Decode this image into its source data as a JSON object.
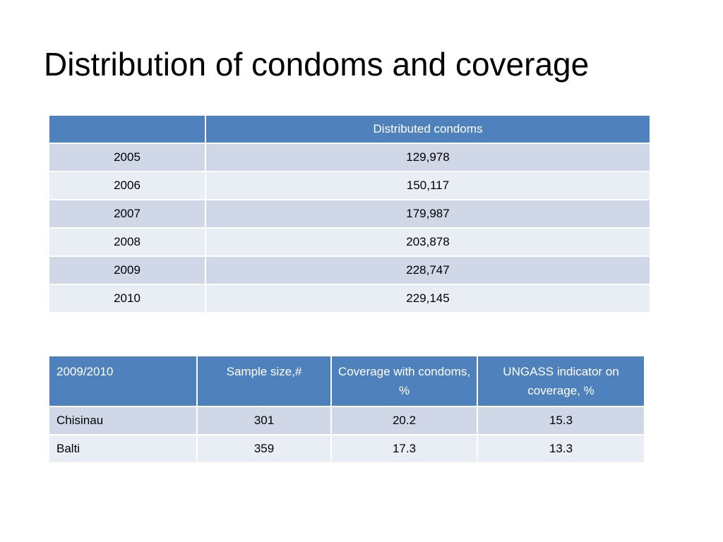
{
  "slide": {
    "title": "Distribution of condoms and coverage"
  },
  "table_distribution": {
    "header": [
      "",
      "Distributed condoms"
    ],
    "rows": [
      {
        "year": "2005",
        "value": "129,978"
      },
      {
        "year": "2006",
        "value": "150,117"
      },
      {
        "year": "2007",
        "value": "179,987"
      },
      {
        "year": "2008",
        "value": "203,878"
      },
      {
        "year": "2009",
        "value": "228,747"
      },
      {
        "year": "2010",
        "value": "229,145"
      }
    ]
  },
  "table_coverage": {
    "header": [
      "2009/2010",
      "Sample size,#",
      "Coverage with condoms, %",
      "UNGASS indicator on coverage, %"
    ],
    "rows": [
      {
        "city": "Chisinau",
        "sample": "301",
        "coverage": "20.2",
        "ungass": "15.3"
      },
      {
        "city": "Balti",
        "sample": "359",
        "coverage": "17.3",
        "ungass": "13.3"
      }
    ]
  },
  "colors": {
    "header": "#4f81bd",
    "row_dark": "#d0d8e8",
    "row_light": "#e9edf4"
  }
}
